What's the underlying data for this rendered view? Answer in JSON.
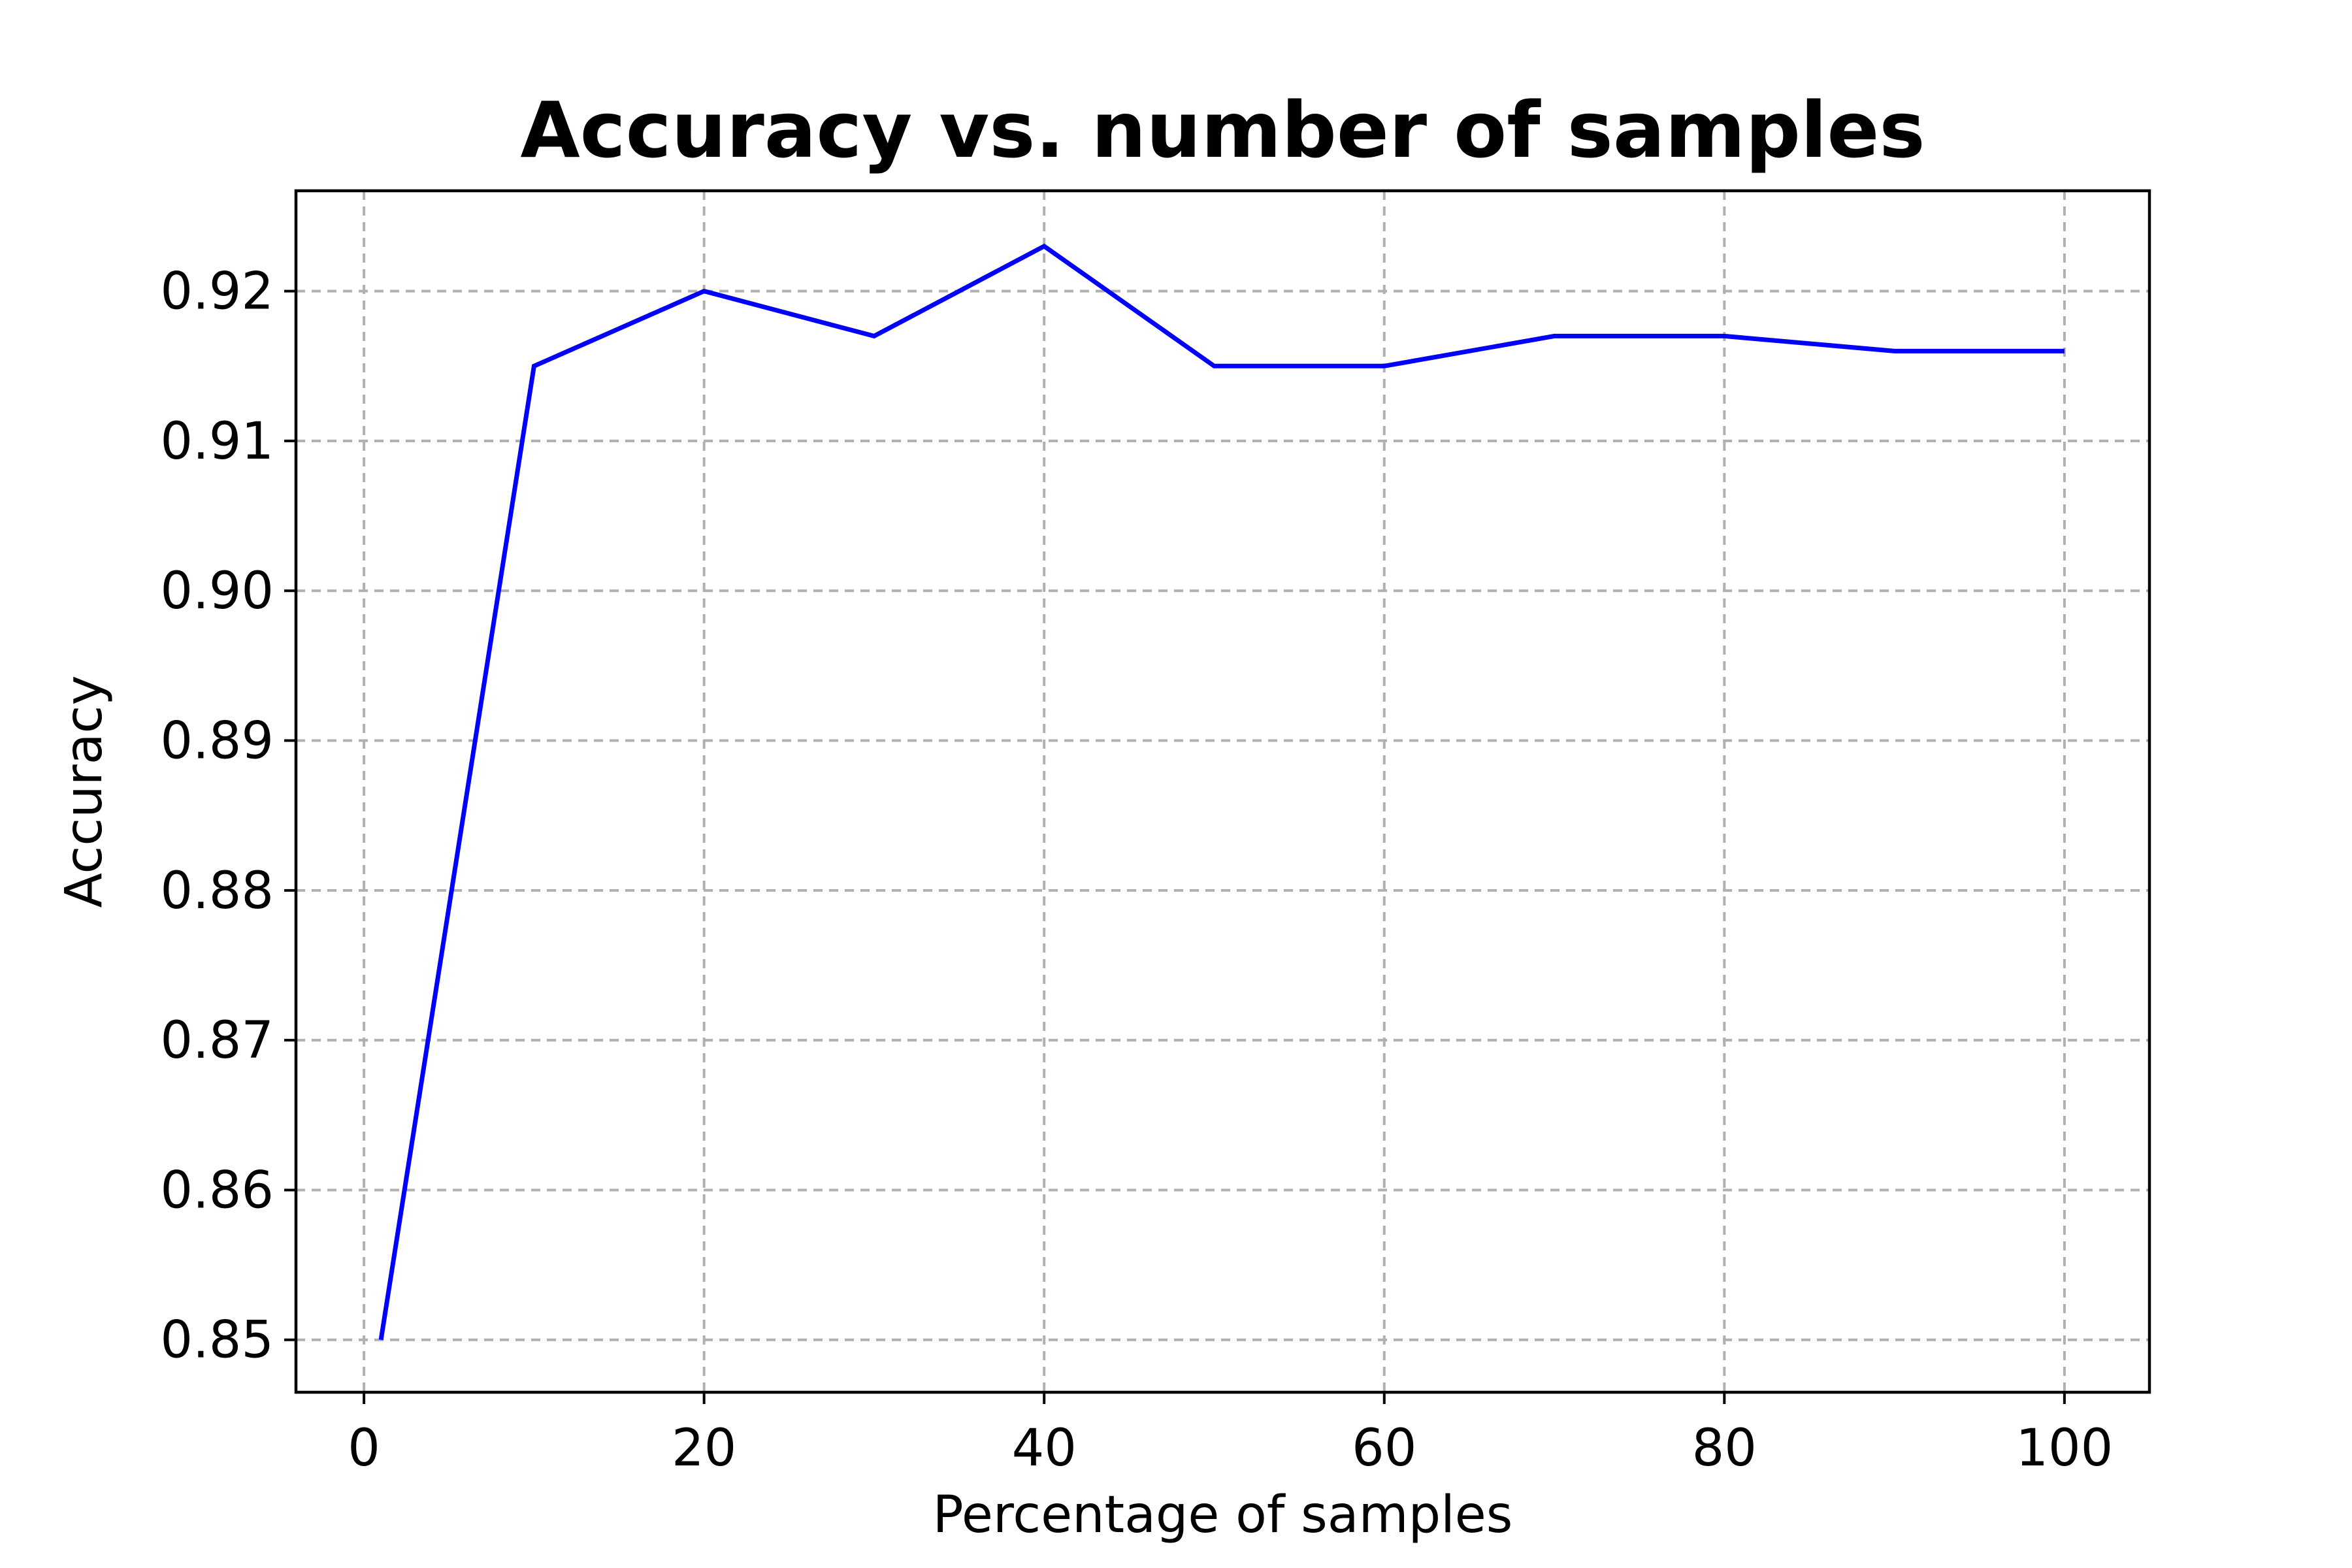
{
  "chart_data": {
    "type": "line",
    "title": "Accuracy vs. number of samples",
    "xlabel": "Percentage of samples",
    "ylabel": "Accuracy",
    "xlim": [
      -4,
      105
    ],
    "ylim": [
      0.8465,
      0.9267
    ],
    "xticks": [
      0,
      20,
      40,
      60,
      80,
      100
    ],
    "xtick_labels": [
      "0",
      "20",
      "40",
      "60",
      "80",
      "100"
    ],
    "yticks": [
      0.85,
      0.86,
      0.87,
      0.88,
      0.89,
      0.9,
      0.91,
      0.92
    ],
    "ytick_labels": [
      "0.85",
      "0.86",
      "0.87",
      "0.88",
      "0.89",
      "0.90",
      "0.91",
      "0.92"
    ],
    "grid": true,
    "series": [
      {
        "color": "#0000ff",
        "x": [
          1,
          10,
          20,
          30,
          40,
          50,
          60,
          70,
          80,
          90,
          100
        ],
        "y": [
          0.85,
          0.915,
          0.92,
          0.917,
          0.923,
          0.915,
          0.915,
          0.917,
          0.917,
          0.916,
          0.916
        ]
      }
    ]
  }
}
